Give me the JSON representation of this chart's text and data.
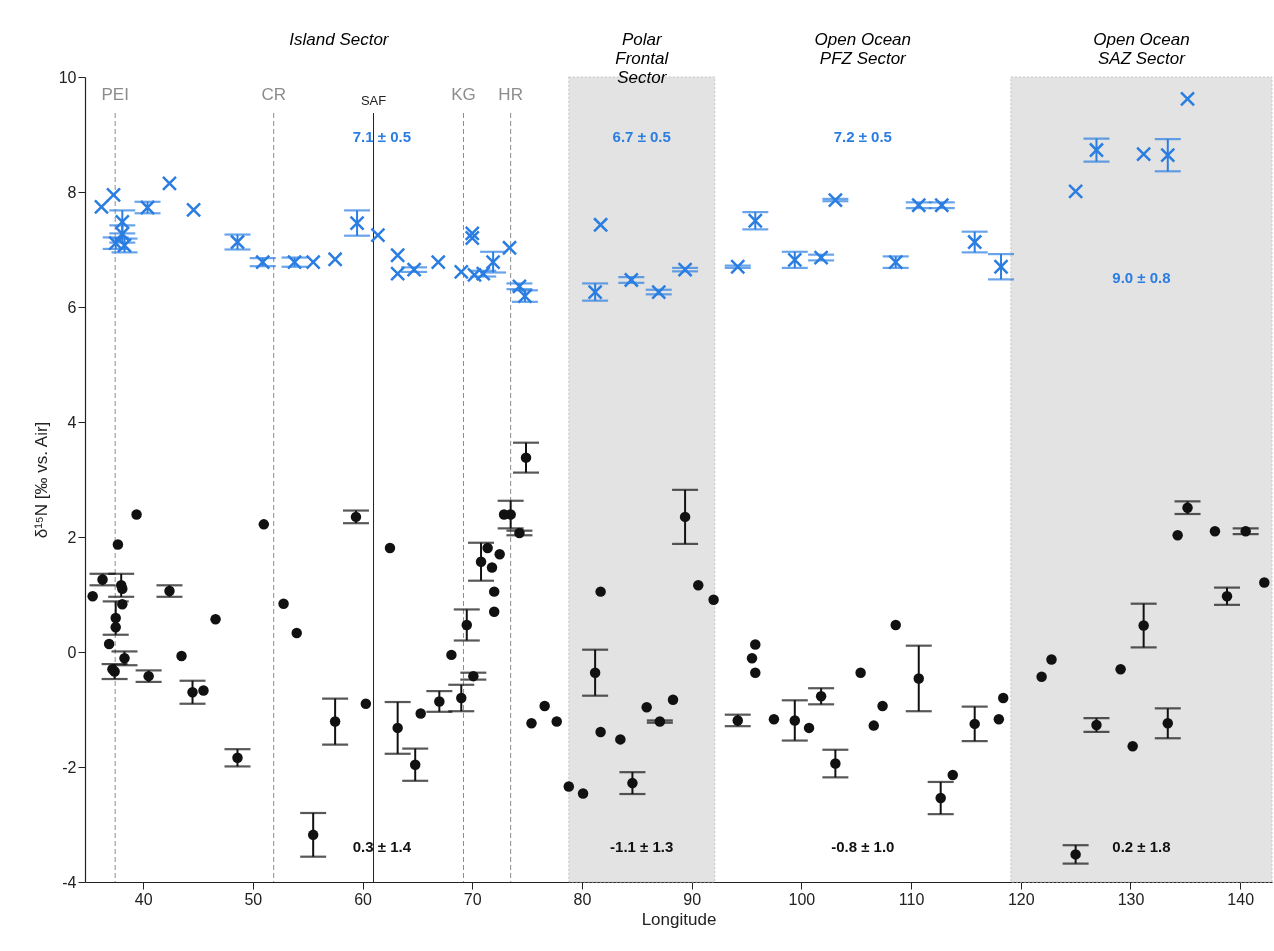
{
  "chart_data": {
    "type": "scatter",
    "xlabel": "Longitude",
    "ylabel": "δ¹⁵N [‰ vs. Air]",
    "xlim": [
      34.7,
      142.9
    ],
    "ylim": [
      -4,
      10
    ],
    "xticks": [
      40,
      50,
      60,
      70,
      80,
      90,
      100,
      110,
      120,
      130,
      140
    ],
    "yticks": [
      -4,
      -2,
      0,
      2,
      4,
      6,
      8,
      10
    ],
    "grid": false,
    "series": [
      {
        "color": "#2a7de1",
        "marker": "cross",
        "x": [
          36.2,
          37.3,
          38.1,
          38.1,
          37.7,
          37.5,
          38.3,
          40.4,
          42.4,
          44.6,
          48.6,
          50.9,
          53.8,
          55.5,
          57.5,
          59.5,
          61.4,
          63.2,
          63.2,
          64.7,
          66.9,
          69.0,
          70.0,
          70.0,
          70.2,
          71.0,
          71.9,
          73.4,
          74.3,
          74.8,
          81.2,
          81.7,
          84.5,
          87.0,
          89.4,
          94.2,
          95.8,
          99.4,
          101.8,
          103.1,
          108.6,
          110.7,
          112.8,
          115.8,
          118.2,
          125.0,
          126.9,
          131.2,
          133.4,
          135.2
        ],
        "values": [
          7.74,
          7.95,
          7.48,
          7.27,
          null,
          7.11,
          7.07,
          7.73,
          8.15,
          7.69,
          7.13,
          6.78,
          6.78,
          6.78,
          6.83,
          7.46,
          7.25,
          6.9,
          6.58,
          6.65,
          6.78,
          6.61,
          7.28,
          7.2,
          6.56,
          6.58,
          6.78,
          7.03,
          6.36,
          6.19,
          6.26,
          7.43,
          6.47,
          6.26,
          6.65,
          6.7,
          7.5,
          6.82,
          6.86,
          7.86,
          6.78,
          7.77,
          7.77,
          7.13,
          6.7,
          8.01,
          8.73,
          8.66,
          8.64,
          9.62
        ],
        "errors": [
          null,
          null,
          0.2,
          0.15,
          null,
          0.1,
          0.12,
          0.1,
          null,
          null,
          0.13,
          0.07,
          0.08,
          null,
          null,
          0.22,
          null,
          null,
          null,
          0.04,
          null,
          null,
          null,
          null,
          null,
          0.05,
          0.18,
          null,
          0.05,
          0.1,
          0.15,
          null,
          0.05,
          0.04,
          0.03,
          0.02,
          0.15,
          0.14,
          0.05,
          0.02,
          0.1,
          0.05,
          0.05,
          0.18,
          0.22,
          null,
          0.2,
          null,
          0.28,
          null
        ]
      },
      {
        "color": "#111111",
        "marker": "circle",
        "x": [
          35.4,
          36.3,
          37.7,
          39.4,
          38.1,
          38.0,
          38.1,
          37.5,
          37.5,
          36.9,
          38.3,
          37.2,
          37.4,
          40.5,
          42.4,
          43.5,
          44.5,
          45.5,
          46.6,
          48.6,
          51.0,
          52.8,
          54.0,
          55.5,
          57.5,
          59.4,
          60.3,
          62.5,
          63.2,
          64.8,
          65.3,
          67.0,
          69.0,
          69.5,
          68.1,
          70.1,
          70.8,
          71.4,
          71.8,
          72.5,
          72.0,
          72.0,
          72.9,
          73.5,
          74.3,
          74.9,
          75.4,
          76.6,
          77.7,
          78.8,
          80.1,
          81.2,
          81.7,
          81.7,
          83.5,
          84.6,
          85.9,
          87.1,
          88.3,
          89.4,
          90.6,
          92.0,
          94.2,
          97.5,
          99.4,
          100.7,
          101.8,
          103.1,
          95.8,
          95.5,
          95.8,
          105.4,
          106.6,
          107.4,
          108.6,
          110.7,
          112.7,
          113.8,
          115.8,
          118.0,
          118.4,
          121.9,
          122.8,
          126.9,
          129.1,
          130.2,
          131.2,
          133.4,
          135.2,
          134.3,
          137.7,
          140.5,
          138.8,
          142.2,
          125.0
        ],
        "values": [
          0.97,
          1.26,
          1.87,
          2.39,
          1.1,
          1.16,
          0.83,
          0.59,
          0.43,
          0.14,
          -0.11,
          -0.3,
          -0.34,
          -0.42,
          1.06,
          -0.07,
          -0.7,
          -0.67,
          0.57,
          -1.84,
          2.22,
          0.84,
          0.33,
          -3.18,
          -1.21,
          2.35,
          -0.9,
          1.81,
          -1.32,
          -1.96,
          -1.07,
          -0.86,
          -0.8,
          0.47,
          -0.05,
          -0.42,
          1.57,
          1.81,
          1.47,
          1.7,
          1.05,
          0.7,
          2.39,
          2.39,
          2.07,
          3.38,
          -1.24,
          -0.94,
          -1.21,
          -2.34,
          -2.46,
          -0.36,
          1.05,
          -1.39,
          -1.52,
          -2.28,
          -0.96,
          -1.21,
          -0.83,
          2.35,
          1.16,
          0.91,
          -1.19,
          -1.17,
          -1.19,
          -1.32,
          -0.77,
          -1.94,
          0.13,
          -0.11,
          -0.36,
          -0.36,
          -1.28,
          -0.94,
          0.47,
          -0.46,
          -2.54,
          -2.14,
          -1.25,
          -1.17,
          -0.8,
          -0.43,
          -0.13,
          -1.27,
          -0.3,
          -1.64,
          0.46,
          -1.24,
          2.51,
          2.03,
          2.1,
          2.1,
          0.97,
          1.21,
          -3.52
        ],
        "errors": [
          null,
          0.1,
          null,
          null,
          null,
          0.2,
          null,
          0.29,
          null,
          null,
          0.12,
          null,
          0.13,
          0.1,
          0.1,
          null,
          0.2,
          null,
          null,
          0.15,
          null,
          null,
          null,
          0.38,
          0.4,
          0.11,
          null,
          null,
          0.45,
          0.28,
          null,
          0.18,
          0.23,
          0.27,
          null,
          0.06,
          0.33,
          null,
          null,
          null,
          null,
          null,
          null,
          0.24,
          0.04,
          0.26,
          null,
          null,
          null,
          null,
          null,
          0.4,
          null,
          null,
          null,
          0.19,
          null,
          0.02,
          null,
          0.47,
          null,
          null,
          0.1,
          null,
          0.35,
          null,
          0.14,
          0.24,
          null,
          null,
          null,
          null,
          null,
          null,
          null,
          0.57,
          0.28,
          null,
          0.3,
          null,
          null,
          null,
          null,
          0.12,
          null,
          null,
          0.38,
          0.26,
          0.11,
          null,
          null,
          0.05,
          0.15,
          null,
          0.16
        ]
      }
    ],
    "ref_lines": [
      {
        "axis": "x",
        "value": 37.45,
        "label": "PEI",
        "color": "#8c8c8c",
        "line_style": "dashed"
      },
      {
        "axis": "x",
        "value": 51.9,
        "label": "CR",
        "color": "#8c8c8c",
        "line_style": "dashed"
      },
      {
        "axis": "x",
        "value": 61.0,
        "label": "SAF",
        "color": "#222222",
        "line_style": "solid"
      },
      {
        "axis": "x",
        "value": 69.2,
        "label": "KG",
        "color": "#8c8c8c",
        "line_style": "dashed"
      },
      {
        "axis": "x",
        "value": 73.5,
        "label": "HR",
        "color": "#8c8c8c",
        "line_style": "dashed"
      }
    ],
    "bands": [
      {
        "axis": "x",
        "from": 78.8,
        "to": 92.1,
        "label": "Polar\nFrontal\nSector",
        "color": "#e3e3e3"
      },
      {
        "axis": "x",
        "from": 119.1,
        "to": 142.9,
        "label": "Open Ocean\nSAZ Sector",
        "color": "#e3e3e3"
      }
    ],
    "annotations": [
      "Island Sector",
      "Open Ocean\nPFZ Sector",
      "7.1 ± 0.5",
      "6.7 ± 0.5",
      "7.2 ± 0.5",
      "9.0 ± 0.8",
      "0.3 ± 1.4",
      "-1.1 ± 1.3",
      "-0.8 ± 1.0",
      "0.2 ± 1.8"
    ]
  }
}
